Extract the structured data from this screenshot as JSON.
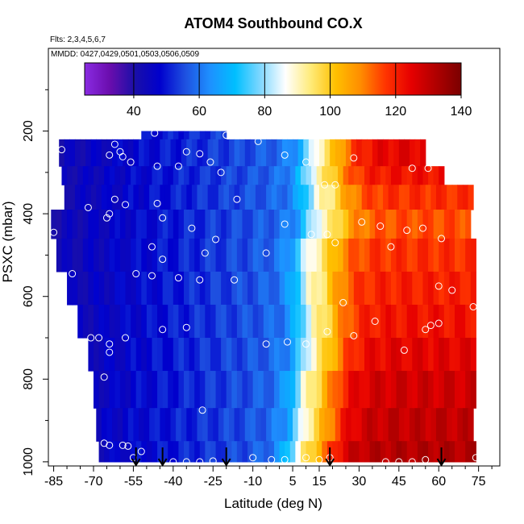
{
  "chart_data": {
    "type": "heatmap",
    "title": "ATOM4 Southbound CO.X",
    "subtitle_flights": "Flts: 2,3,4,5,6,7",
    "subtitle_dates": "MMDD: 0427,0429,0501,0503,0506,0509",
    "xlabel": "Latitude (deg N)",
    "ylabel": "PSXC (mbar)",
    "xlim": [
      -87,
      83
    ],
    "ylim": [
      1010,
      0
    ],
    "x_ticks": [
      -85,
      -70,
      -55,
      -40,
      -25,
      -10,
      5,
      15,
      30,
      45,
      60,
      75
    ],
    "y_ticks": [
      200,
      400,
      600,
      800,
      1000
    ],
    "colorbar": {
      "min": 25,
      "max": 140,
      "ticks": [
        40,
        60,
        80,
        100,
        120,
        140
      ],
      "colors": [
        "#8a2be2",
        "#6a0dad",
        "#1a0fa8",
        "#0000cd",
        "#1e50e0",
        "#1e90ff",
        "#00bfff",
        "#7fd7ff",
        "#ffffff",
        "#ffeb7a",
        "#ffc000",
        "#ff8c00",
        "#ff3300",
        "#e60000",
        "#b00000",
        "#7a0000"
      ]
    },
    "profile_bands": [
      {
        "p_min": 200,
        "p_max": 220,
        "x_left": -52,
        "x_right": -20,
        "x_mid": 20,
        "high": 125
      },
      {
        "p_min": 220,
        "p_max": 285,
        "x_left": -83,
        "x_right": 55,
        "x_mid": 19,
        "high": 125
      },
      {
        "p_min": 285,
        "p_max": 330,
        "x_left": -82,
        "x_right": 62,
        "x_mid": 18,
        "high": 122
      },
      {
        "p_min": 330,
        "p_max": 390,
        "x_left": -81,
        "x_right": 72,
        "x_mid": 19,
        "high": 118
      },
      {
        "p_min": 390,
        "p_max": 460,
        "x_left": -86,
        "x_right": 72,
        "x_mid": 19,
        "high": 115
      },
      {
        "p_min": 460,
        "p_max": 540,
        "x_left": -84,
        "x_right": 73,
        "x_mid": 16,
        "high": 118
      },
      {
        "p_min": 540,
        "p_max": 620,
        "x_left": -80,
        "x_right": 73,
        "x_mid": 16,
        "high": 120
      },
      {
        "p_min": 620,
        "p_max": 700,
        "x_left": -76,
        "x_right": 73,
        "x_mid": 17,
        "high": 122
      },
      {
        "p_min": 700,
        "p_max": 780,
        "x_left": -72,
        "x_right": 73,
        "x_mid": 17,
        "high": 125
      },
      {
        "p_min": 780,
        "p_max": 870,
        "x_left": -70,
        "x_right": 73,
        "x_mid": 15,
        "high": 128
      },
      {
        "p_min": 870,
        "p_max": 950,
        "x_left": -69,
        "x_right": 73,
        "x_mid": 15,
        "high": 130
      },
      {
        "p_min": 950,
        "p_max": 1000,
        "x_left": -68,
        "x_right": 74,
        "x_mid": 13,
        "high": 132
      }
    ],
    "observations": [
      {
        "lat": -82,
        "p": 245
      },
      {
        "lat": -62,
        "p": 232
      },
      {
        "lat": -60,
        "p": 250
      },
      {
        "lat": -57,
        "p": 210
      },
      {
        "lat": -47,
        "p": 205
      },
      {
        "lat": -20,
        "p": 210
      },
      {
        "lat": -8,
        "p": 225
      },
      {
        "lat": -64,
        "p": 258
      },
      {
        "lat": -59,
        "p": 262
      },
      {
        "lat": -56,
        "p": 275
      },
      {
        "lat": -46,
        "p": 285
      },
      {
        "lat": -38,
        "p": 285
      },
      {
        "lat": -35,
        "p": 250
      },
      {
        "lat": -30,
        "p": 255
      },
      {
        "lat": -26,
        "p": 275
      },
      {
        "lat": -22,
        "p": 300
      },
      {
        "lat": 2,
        "p": 258
      },
      {
        "lat": 10,
        "p": 275
      },
      {
        "lat": 28,
        "p": 265
      },
      {
        "lat": 50,
        "p": 290
      },
      {
        "lat": 56,
        "p": 290
      },
      {
        "lat": -62,
        "p": 365
      },
      {
        "lat": -58,
        "p": 378
      },
      {
        "lat": -64,
        "p": 400
      },
      {
        "lat": -65,
        "p": 410
      },
      {
        "lat": -72,
        "p": 385
      },
      {
        "lat": -46,
        "p": 375
      },
      {
        "lat": -16,
        "p": 365
      },
      {
        "lat": 17,
        "p": 330
      },
      {
        "lat": 21,
        "p": 330
      },
      {
        "lat": 31,
        "p": 420
      },
      {
        "lat": -44,
        "p": 410
      },
      {
        "lat": 2,
        "p": 425
      },
      {
        "lat": -33,
        "p": 435
      },
      {
        "lat": 12,
        "p": 450
      },
      {
        "lat": 18,
        "p": 450
      },
      {
        "lat": 38,
        "p": 430
      },
      {
        "lat": 48,
        "p": 440
      },
      {
        "lat": 54,
        "p": 435
      },
      {
        "lat": 61,
        "p": 460
      },
      {
        "lat": -24,
        "p": 462
      },
      {
        "lat": -85,
        "p": 445
      },
      {
        "lat": 21,
        "p": 470
      },
      {
        "lat": 42,
        "p": 480
      },
      {
        "lat": -48,
        "p": 480
      },
      {
        "lat": -28,
        "p": 495
      },
      {
        "lat": -44,
        "p": 510
      },
      {
        "lat": -5,
        "p": 495
      },
      {
        "lat": -78,
        "p": 545
      },
      {
        "lat": -54,
        "p": 545
      },
      {
        "lat": -48,
        "p": 550
      },
      {
        "lat": -38,
        "p": 555
      },
      {
        "lat": -30,
        "p": 560
      },
      {
        "lat": -17,
        "p": 560
      },
      {
        "lat": 60,
        "p": 575
      },
      {
        "lat": 65,
        "p": 585
      },
      {
        "lat": 73,
        "p": 625
      },
      {
        "lat": 24,
        "p": 615
      },
      {
        "lat": 36,
        "p": 660
      },
      {
        "lat": 60,
        "p": 665
      },
      {
        "lat": -44,
        "p": 680
      },
      {
        "lat": -35,
        "p": 675
      },
      {
        "lat": 18,
        "p": 685
      },
      {
        "lat": 55,
        "p": 680
      },
      {
        "lat": 57,
        "p": 670
      },
      {
        "lat": 28,
        "p": 695
      },
      {
        "lat": -71,
        "p": 700
      },
      {
        "lat": -68,
        "p": 700
      },
      {
        "lat": -64,
        "p": 715
      },
      {
        "lat": -64,
        "p": 735
      },
      {
        "lat": -58,
        "p": 700
      },
      {
        "lat": -5,
        "p": 715
      },
      {
        "lat": 3,
        "p": 710
      },
      {
        "lat": 10,
        "p": 715
      },
      {
        "lat": 47,
        "p": 730
      },
      {
        "lat": -66,
        "p": 795
      },
      {
        "lat": -29,
        "p": 875
      },
      {
        "lat": -71,
        "p": 970
      },
      {
        "lat": -66,
        "p": 955
      },
      {
        "lat": -64,
        "p": 960
      },
      {
        "lat": -59,
        "p": 960
      },
      {
        "lat": -57,
        "p": 962
      },
      {
        "lat": -55,
        "p": 990
      },
      {
        "lat": -52,
        "p": 975
      },
      {
        "lat": -40,
        "p": 1000
      },
      {
        "lat": -35,
        "p": 1000
      },
      {
        "lat": -30,
        "p": 1000
      },
      {
        "lat": -25,
        "p": 998
      },
      {
        "lat": -10,
        "p": 990
      },
      {
        "lat": -3,
        "p": 995
      },
      {
        "lat": 2,
        "p": 995
      },
      {
        "lat": 10,
        "p": 990
      },
      {
        "lat": 15,
        "p": 995
      },
      {
        "lat": 19,
        "p": 990
      },
      {
        "lat": 40,
        "p": 1000
      },
      {
        "lat": 45,
        "p": 1000
      },
      {
        "lat": 50,
        "p": 1000
      },
      {
        "lat": 55,
        "p": 995
      },
      {
        "lat": 74,
        "p": 990
      }
    ],
    "arrows": [
      -54,
      -44,
      -20,
      19,
      61
    ],
    "grid": false,
    "legend": "colorbar-top"
  }
}
